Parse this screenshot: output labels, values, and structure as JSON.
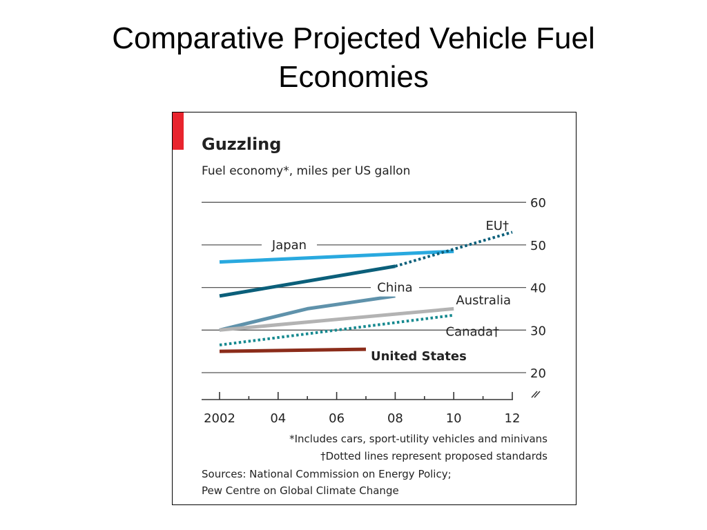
{
  "slide": {
    "title_line1": "Comparative Projected Vehicle Fuel",
    "title_line2": "Economies"
  },
  "chart_data": {
    "type": "line",
    "title": "Guzzling",
    "subtitle": "Fuel economy*, miles per US gallon",
    "accent_color": "#e8242e",
    "x": [
      2002,
      2004,
      2006,
      2008,
      2010,
      2012
    ],
    "x_tick_labels": [
      "2002",
      "04",
      "06",
      "08",
      "10",
      "12"
    ],
    "xlim": [
      2002,
      2012
    ],
    "y_tick_values": [
      20,
      30,
      40,
      50,
      60
    ],
    "y_tick_labels": [
      "20",
      "30",
      "40",
      "50",
      "60"
    ],
    "ylim": [
      20,
      60
    ],
    "axis_break": true,
    "grid": true,
    "series": [
      {
        "name": "Japan",
        "color": "#29a9df",
        "style": "solid",
        "points": [
          [
            2002,
            46
          ],
          [
            2010,
            48.5
          ]
        ]
      },
      {
        "name": "EU",
        "label": "EU†",
        "color": "#0b5f7a",
        "style": "segments",
        "segments": [
          {
            "style": "solid",
            "points": [
              [
                2002,
                38
              ],
              [
                2008,
                45
              ]
            ]
          },
          {
            "style": "dotted",
            "points": [
              [
                2008,
                45
              ],
              [
                2012,
                53
              ]
            ]
          }
        ]
      },
      {
        "name": "China",
        "color": "#5f92ab",
        "style": "solid",
        "points": [
          [
            2002,
            30
          ],
          [
            2005,
            35
          ],
          [
            2008,
            38
          ]
        ]
      },
      {
        "name": "Australia",
        "color": "#b3b3b3",
        "style": "solid",
        "points": [
          [
            2002,
            30
          ],
          [
            2010,
            35
          ]
        ]
      },
      {
        "name": "Canada",
        "label": "Canada†",
        "color": "#16898f",
        "style": "dotted",
        "points": [
          [
            2002,
            26.5
          ],
          [
            2010,
            33.5
          ]
        ]
      },
      {
        "name": "United States",
        "color": "#8b2c1a",
        "style": "solid",
        "points": [
          [
            2002,
            25
          ],
          [
            2007,
            25.5
          ]
        ]
      }
    ],
    "footnotes": [
      "*Includes cars, sport-utility vehicles and minivans",
      "†Dotted lines represent proposed standards"
    ],
    "sources": [
      "Sources: National Commission on Energy Policy;",
      "Pew Centre on Global Climate Change"
    ]
  }
}
